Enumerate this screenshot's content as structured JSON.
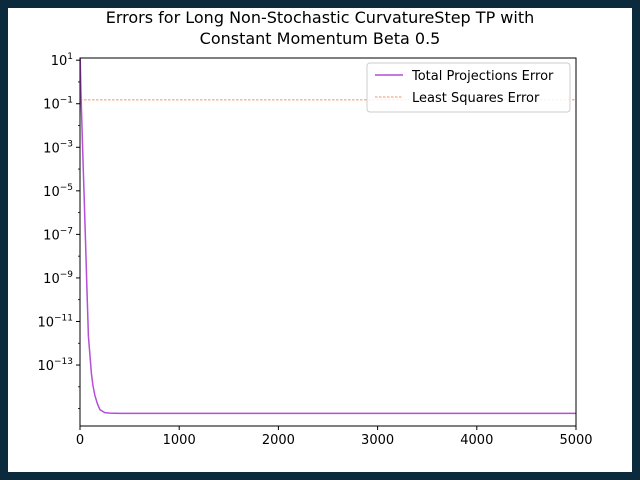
{
  "chart_data": {
    "type": "line",
    "title_lines": [
      "Errors for Long Non-Stochastic CurvatureStep TP with",
      "Constant Momentum Beta 0.5"
    ],
    "xlabel": "",
    "ylabel": "",
    "xlim": [
      0,
      5000
    ],
    "ylim_log10": [
      -15.8,
      1.1
    ],
    "y_scale": "log",
    "grid": false,
    "legend_position": "upper right",
    "x_ticks": [
      0,
      1000,
      2000,
      3000,
      4000,
      5000
    ],
    "x_tick_labels": [
      "0",
      "1000",
      "2000",
      "3000",
      "4000",
      "5000"
    ],
    "y_ticks_log10": [
      1,
      -1,
      -3,
      -5,
      -7,
      -9,
      -11,
      -13
    ],
    "y_tick_labels": [
      {
        "base": "10",
        "exp": "1"
      },
      {
        "base": "10",
        "exp": "−1"
      },
      {
        "base": "10",
        "exp": "−3"
      },
      {
        "base": "10",
        "exp": "−5"
      },
      {
        "base": "10",
        "exp": "−7"
      },
      {
        "base": "10",
        "exp": "−9"
      },
      {
        "base": "10",
        "exp": "−11"
      },
      {
        "base": "10",
        "exp": "−13"
      }
    ],
    "series": [
      {
        "name": "Total Projections Error",
        "color": "#b44fd6",
        "style": "solid",
        "x": [
          0,
          10,
          25,
          40,
          55,
          70,
          85,
          100,
          115,
          130,
          150,
          175,
          200,
          250,
          300,
          350,
          400,
          500,
          700,
          1000,
          2000,
          3000,
          4000,
          5000
        ],
        "y": [
          30,
          0.3,
          0.0015,
          1e-05,
          6e-08,
          3e-10,
          2e-12,
          3e-13,
          4e-14,
          1.2e-14,
          4e-15,
          1.7e-15,
          9e-16,
          6.5e-16,
          6.2e-16,
          6.1e-16,
          6e-16,
          6e-16,
          6e-16,
          6e-16,
          6e-16,
          6e-16,
          6e-16,
          6e-16
        ]
      },
      {
        "name": "Least Squares Error",
        "color": "#e8743b",
        "style": "dashed",
        "x": [
          0,
          5000
        ],
        "y": [
          0.15,
          0.15
        ]
      }
    ]
  }
}
